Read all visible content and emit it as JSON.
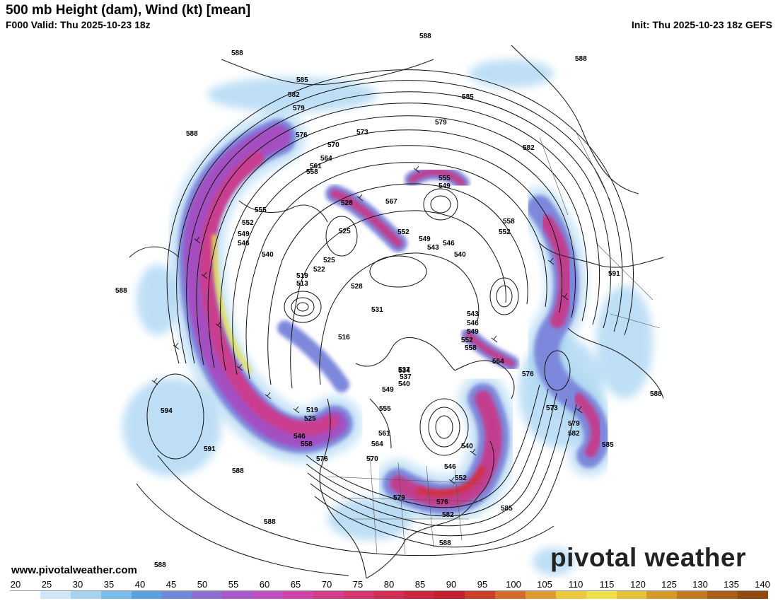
{
  "header": {
    "title": "500 mb Height (dam), Wind (kt) [mean]",
    "valid": "F000 Valid: Thu 2025-10-23 18z",
    "init": "Init: Thu 2025-10-23 18z GEFS"
  },
  "footer": {
    "website": "www.pivotalweather.com",
    "logo_text": "pivotal weather"
  },
  "colorbar": {
    "ticks": [
      "20",
      "25",
      "30",
      "35",
      "40",
      "45",
      "50",
      "55",
      "60",
      "65",
      "70",
      "75",
      "80",
      "85",
      "90",
      "95",
      "100",
      "105",
      "110",
      "115",
      "120",
      "125",
      "130",
      "135",
      "140"
    ],
    "colors": [
      "#ffffff",
      "#cfe7f7",
      "#a6d3f2",
      "#7bbce9",
      "#5aa3e0",
      "#6f8ad8",
      "#8c6fd0",
      "#a85ac8",
      "#c04fbf",
      "#cf44a8",
      "#d33d8c",
      "#d63670",
      "#d22e55",
      "#cc2540",
      "#c41f2e",
      "#c8402a",
      "#d46c2e",
      "#e09a34",
      "#ebc93e",
      "#efe04a",
      "#e6c23c",
      "#d49a2c",
      "#c07a20",
      "#a85f18",
      "#8f4a12"
    ]
  },
  "height_labels": [
    "588",
    "585",
    "582",
    "579",
    "576",
    "573",
    "570",
    "567",
    "564",
    "561",
    "558",
    "555",
    "552",
    "549",
    "546",
    "543",
    "540",
    "537",
    "534",
    "531",
    "528",
    "525",
    "522",
    "519",
    "516",
    "513",
    "591",
    "594"
  ],
  "colors": {
    "jet_light": "#a8d4f2",
    "jet_mid": "#6c8be0",
    "jet_purple": "#9a4fc4",
    "jet_magenta": "#c23c8e",
    "jet_red": "#d03046",
    "jet_yellow": "#e8e04a"
  }
}
